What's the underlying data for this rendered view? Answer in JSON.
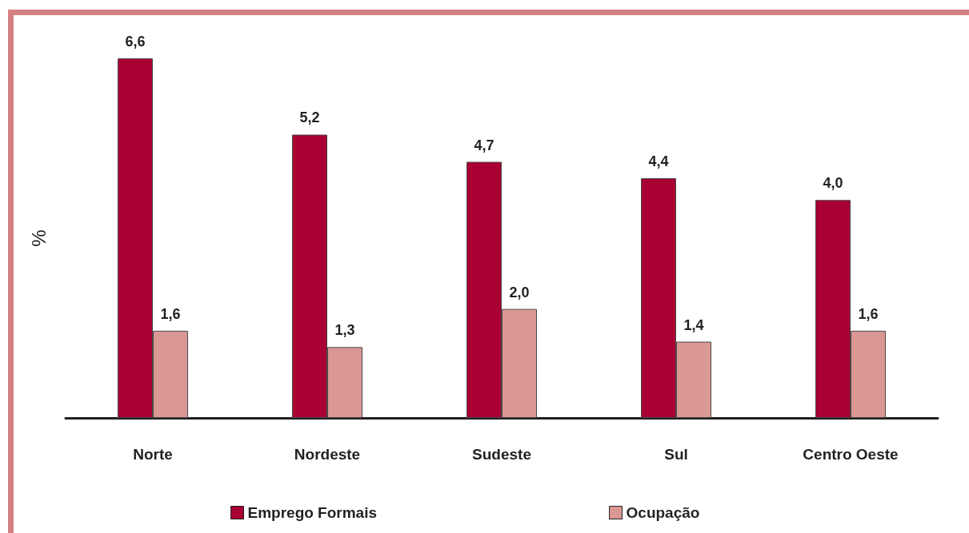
{
  "chart_data": {
    "type": "bar",
    "ylabel": "%",
    "categories": [
      "Norte",
      "Nordeste",
      "Sudeste",
      "Sul",
      "Centro Oeste"
    ],
    "series": [
      {
        "name": "Emprego Formais",
        "color": "#a80032",
        "values": [
          6.6,
          5.2,
          4.7,
          4.4,
          4.0
        ],
        "value_labels": [
          "6,6",
          "5,2",
          "4,7",
          "4,4",
          "4,0"
        ]
      },
      {
        "name": "Ocupação",
        "color": "#da9794",
        "values": [
          1.6,
          1.3,
          2.0,
          1.4,
          1.6
        ],
        "value_labels": [
          "1,6",
          "1,3",
          "2,0",
          "1,4",
          "1,6"
        ]
      }
    ],
    "legend": "bottom",
    "grid": false,
    "tick_labels": "x"
  }
}
